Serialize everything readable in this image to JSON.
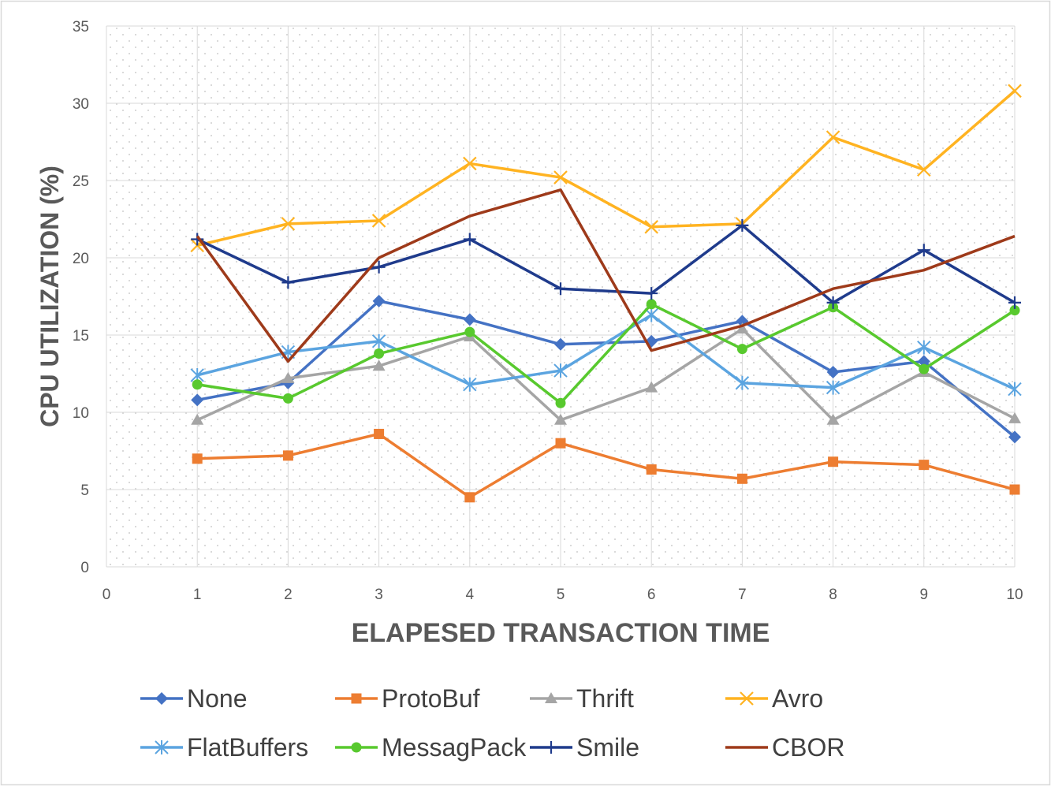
{
  "chart_data": {
    "type": "line",
    "xlabel": "ELAPESED TRANSACTION TIME",
    "ylabel": "CPU UTILIZATION (%)",
    "xlim": [
      0,
      10
    ],
    "ylim": [
      0,
      35
    ],
    "x_ticks": [
      0,
      1,
      2,
      3,
      4,
      5,
      6,
      7,
      8,
      9,
      10
    ],
    "y_ticks": [
      0,
      5,
      10,
      15,
      20,
      25,
      30,
      35
    ],
    "grid": true,
    "legend_position": "bottom",
    "x": [
      1,
      2,
      3,
      4,
      5,
      6,
      7,
      8,
      9,
      10
    ],
    "series": [
      {
        "name": "None",
        "color": "#4472C4",
        "marker": "diamond",
        "values": [
          10.8,
          11.9,
          17.2,
          16.0,
          14.4,
          14.6,
          15.9,
          12.6,
          13.3,
          8.4
        ]
      },
      {
        "name": "ProtoBuf",
        "color": "#ED7D31",
        "marker": "square",
        "values": [
          7.0,
          7.2,
          8.6,
          4.5,
          8.0,
          6.3,
          5.7,
          6.8,
          6.6,
          5.0
        ]
      },
      {
        "name": "Thrift",
        "color": "#A5A5A5",
        "marker": "triangle",
        "values": [
          9.5,
          12.2,
          13.0,
          14.9,
          9.5,
          11.6,
          15.4,
          9.5,
          12.6,
          9.6
        ]
      },
      {
        "name": "Avro",
        "color": "#FFB321",
        "marker": "x",
        "values": [
          20.8,
          22.2,
          22.4,
          26.1,
          25.2,
          22.0,
          22.2,
          27.8,
          25.7,
          30.8
        ]
      },
      {
        "name": "FlatBuffers",
        "color": "#5BA4E0",
        "marker": "asterisk",
        "values": [
          12.4,
          13.9,
          14.6,
          11.8,
          12.7,
          16.3,
          11.9,
          11.6,
          14.2,
          11.5
        ]
      },
      {
        "name": "MessagPack",
        "color": "#58C92E",
        "marker": "circle",
        "values": [
          11.8,
          10.9,
          13.8,
          15.2,
          10.6,
          17.0,
          14.1,
          16.8,
          12.8,
          16.6
        ]
      },
      {
        "name": "Smile",
        "color": "#1F3B8C",
        "marker": "plus",
        "values": [
          21.2,
          18.4,
          19.4,
          21.2,
          18.0,
          17.7,
          22.1,
          17.1,
          20.5,
          17.1
        ]
      },
      {
        "name": "CBOR",
        "color": "#9E3A1A",
        "marker": "none",
        "values": [
          21.4,
          13.3,
          20.0,
          22.7,
          24.4,
          14.0,
          15.6,
          18.0,
          19.2,
          21.4
        ]
      }
    ]
  }
}
